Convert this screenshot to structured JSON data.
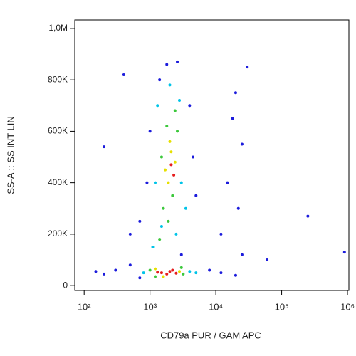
{
  "chart_data": {
    "type": "scatter",
    "x_label": "CD79a PUR / GAM APC",
    "y_label": "SS-A :: SS INT LIN",
    "log_x": true,
    "xlim": [
      72,
      1050000
    ],
    "ylim": [
      -19000,
      1033000
    ],
    "xticks": [
      {
        "value": 100,
        "label": "10²"
      },
      {
        "value": 1000,
        "label": "10³"
      },
      {
        "value": 10000,
        "label": "10⁴"
      },
      {
        "value": 100000,
        "label": "10⁵"
      },
      {
        "value": 1000000,
        "label": "10⁶"
      }
    ],
    "yticks": [
      0,
      {
        "value": 200000,
        "label": "200K"
      },
      {
        "value": 400000,
        "label": "400K"
      },
      {
        "value": 600000,
        "label": "600K"
      },
      {
        "value": 800000,
        "label": "800K"
      },
      {
        "value": 1000000,
        "label": "1,0M"
      }
    ],
    "series": [
      {
        "color": "#1c1cdc",
        "x": [
          300,
          200,
          500,
          700,
          150,
          8000,
          12000,
          20000,
          25000,
          900,
          700,
          1000,
          4500,
          5000,
          4000,
          1800,
          2600,
          1400,
          18000,
          20000,
          25000,
          15000,
          22000,
          30000,
          200,
          400,
          60000,
          250000,
          900000,
          500,
          12000,
          3000
        ],
        "values": [
          60000,
          45000,
          80000,
          30000,
          55000,
          60000,
          50000,
          40000,
          120000,
          400000,
          250000,
          600000,
          500000,
          350000,
          700000,
          860000,
          870000,
          800000,
          650000,
          750000,
          550000,
          400000,
          300000,
          850000,
          540000,
          820000,
          100000,
          270000,
          130000,
          200000,
          200000,
          120000
        ]
      },
      {
        "color": "#00c4e8",
        "x": [
          800,
          4000,
          1300,
          2800,
          1200,
          3000,
          1500,
          2000,
          1100,
          3500,
          5000,
          2500
        ],
        "values": [
          50000,
          55000,
          700000,
          720000,
          400000,
          400000,
          230000,
          780000,
          150000,
          300000,
          50000,
          200000
        ]
      },
      {
        "color": "#3cc83c",
        "x": [
          1000,
          3000,
          1200,
          1800,
          2600,
          1500,
          2200,
          1600,
          2400,
          1900,
          3200,
          1400
        ],
        "values": [
          60000,
          70000,
          35000,
          620000,
          600000,
          500000,
          350000,
          300000,
          680000,
          250000,
          45000,
          180000
        ]
      },
      {
        "color": "#e6e000",
        "x": [
          1200,
          2800,
          1600,
          2100,
          1900,
          2400,
          2000,
          1700
        ],
        "values": [
          65000,
          55000,
          35000,
          520000,
          400000,
          480000,
          560000,
          450000
        ]
      },
      {
        "color": "#e61e1e",
        "x": [
          1500,
          2000,
          1800,
          2200,
          1300,
          2500,
          2100,
          2300
        ],
        "values": [
          50000,
          55000,
          45000,
          60000,
          52000,
          48000,
          470000,
          430000
        ]
      }
    ]
  }
}
